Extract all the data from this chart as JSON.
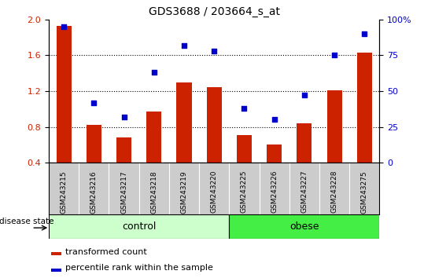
{
  "title": "GDS3688 / 203664_s_at",
  "samples": [
    "GSM243215",
    "GSM243216",
    "GSM243217",
    "GSM243218",
    "GSM243219",
    "GSM243220",
    "GSM243225",
    "GSM243226",
    "GSM243227",
    "GSM243228",
    "GSM243275"
  ],
  "transformed_count": [
    1.93,
    0.82,
    0.68,
    0.97,
    1.3,
    1.24,
    0.71,
    0.6,
    0.84,
    1.21,
    1.63
  ],
  "percentile_rank": [
    95,
    42,
    32,
    63,
    82,
    78,
    38,
    30,
    47,
    75,
    90
  ],
  "ylim_left": [
    0.4,
    2.0
  ],
  "ylim_right": [
    0,
    100
  ],
  "yticks_left": [
    0.4,
    0.8,
    1.2,
    1.6,
    2.0
  ],
  "yticks_right": [
    0,
    25,
    50,
    75,
    100
  ],
  "ytick_labels_right": [
    "0",
    "25",
    "50",
    "75",
    "100%"
  ],
  "bar_color": "#cc2200",
  "dot_color": "#0000cc",
  "control_color": "#ccffcc",
  "obese_color": "#44ee44",
  "label_bg_color": "#cccccc",
  "n_control": 6,
  "n_obese": 5,
  "control_label": "control",
  "obese_label": "obese",
  "disease_state_label": "disease state",
  "legend_bar_label": "transformed count",
  "legend_dot_label": "percentile rank within the sample",
  "bar_width": 0.5,
  "grid_yticks": [
    0.8,
    1.2,
    1.6
  ]
}
